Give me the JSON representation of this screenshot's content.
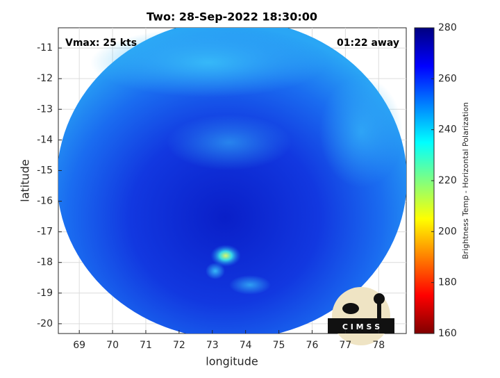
{
  "chart_data": {
    "type": "image",
    "title": "Two: 28-Sep-2022 18:30:00",
    "annotations": [
      "Vmax: 25 kts",
      "01:22 away"
    ],
    "xlabel": "longitude",
    "ylabel": "latitude",
    "xlim": [
      68.37,
      78.83
    ],
    "xticks": [
      69,
      70,
      71,
      72,
      73,
      74,
      75,
      76,
      77,
      78
    ],
    "ylim": [
      -20.32,
      -10.34
    ],
    "yticks": [
      -11,
      -12,
      -13,
      -14,
      -15,
      -16,
      -17,
      -18,
      -19,
      -20
    ],
    "grid": true,
    "colorbar": {
      "label": "Brightness Temp - Horizontal Polarization",
      "colormap": "jet",
      "lim": [
        160,
        280
      ],
      "ticks": [
        160,
        180,
        200,
        220,
        240,
        260,
        280
      ]
    },
    "logo": "C I M S S"
  }
}
